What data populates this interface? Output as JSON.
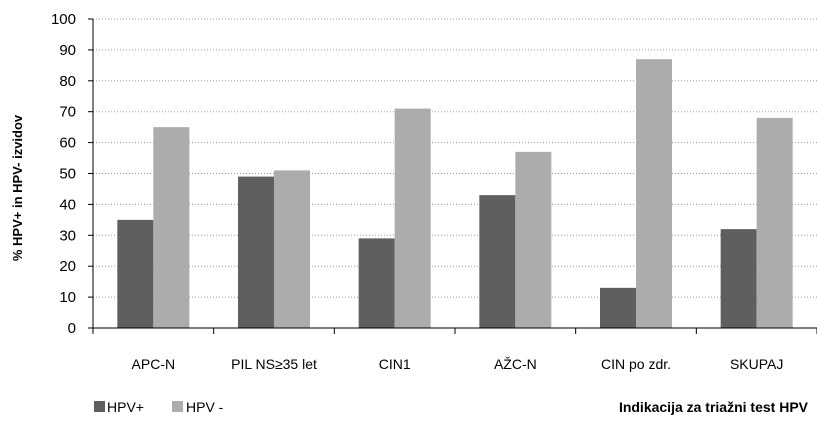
{
  "colors": {
    "hpv_pos": "#5f5f5f",
    "hpv_neg": "#acacac",
    "grid": "#9a9a9a",
    "axis": "#000000"
  },
  "chart_data": {
    "type": "bar",
    "title": "",
    "ylabel": "% HPV+ in HPV- izvidov",
    "xlabel": "Indikacija za triažni test HPV",
    "ylim": [
      0,
      100
    ],
    "yticks": [
      0,
      10,
      20,
      30,
      40,
      50,
      60,
      70,
      80,
      90,
      100
    ],
    "grid": true,
    "legend_position": "bottom-left",
    "categories": [
      "APC-N",
      "PIL NS≥35 let",
      "CIN1",
      "AŽC-N",
      "CIN po zdr.",
      "SKUPAJ"
    ],
    "series": [
      {
        "name": "HPV+",
        "values": [
          35,
          49,
          29,
          43,
          13,
          32
        ]
      },
      {
        "name": "HPV -",
        "values": [
          65,
          51,
          71,
          57,
          87,
          68
        ]
      }
    ]
  }
}
